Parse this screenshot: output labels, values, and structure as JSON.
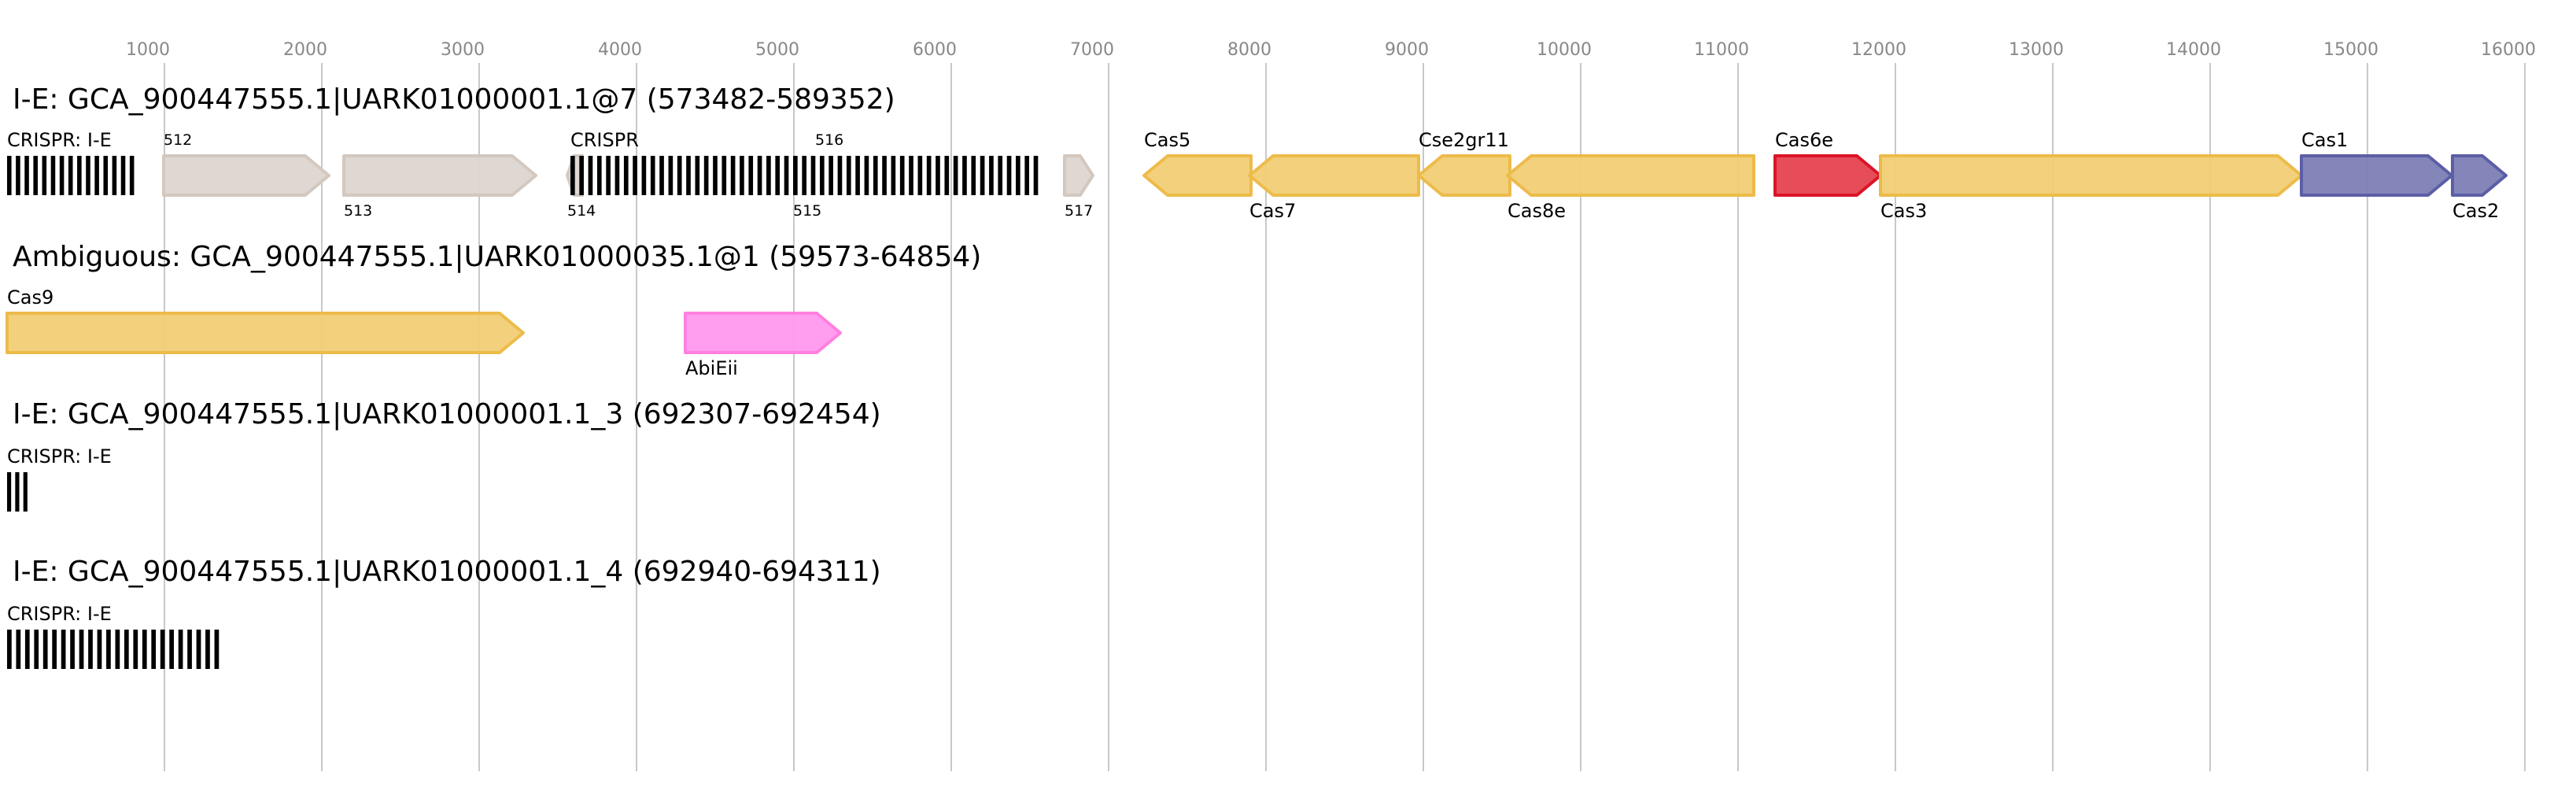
{
  "axis": {
    "ticks": [
      1000,
      2000,
      3000,
      4000,
      5000,
      6000,
      7000,
      8000,
      9000,
      10000,
      11000,
      12000,
      13000,
      14000,
      15000,
      16000
    ],
    "grid": true
  },
  "colors": {
    "other_fill": "#dcd5d0",
    "other_stroke": "#d3c8bf",
    "cas_fill": "#f1cd75",
    "cas_stroke": "#edbb4a",
    "cas6_fill": "#e5434f",
    "cas6_stroke": "#dc1428",
    "adapt_fill": "#7d7fb6",
    "adapt_stroke": "#5c5ea6",
    "abi_fill": "#ff99ee",
    "abi_stroke": "#ff80e0",
    "crispr": "#000000"
  },
  "loci": [
    {
      "title": "I-E: GCA_900447555.1|UARK01000001.1@7 (573482-589352)",
      "features": [
        {
          "label": "CRISPR: I-E",
          "type": "crispr",
          "start": 0,
          "end": 835,
          "repeats": 15,
          "label_pos": "above",
          "label_size": "normal"
        },
        {
          "label": "512",
          "type": "gene",
          "start": 995,
          "end": 2045,
          "strand": "+",
          "color": "other",
          "label_pos": "above",
          "label_size": "small"
        },
        {
          "label": "513",
          "type": "gene",
          "start": 2140,
          "end": 3360,
          "strand": "+",
          "color": "other",
          "label_pos": "below",
          "label_size": "small"
        },
        {
          "label": "514",
          "type": "gene",
          "start": 3560,
          "end": 3655,
          "strand": "-",
          "color": "other",
          "label_pos": "above",
          "label_size": "small"
        },
        {
          "label": "515",
          "type": "label",
          "start": 4995,
          "label_pos": "below",
          "label_size": "small"
        },
        {
          "label": "516",
          "type": "label",
          "start": 5135,
          "label_pos": "above",
          "label_size": "small"
        },
        {
          "label": "CRISPR",
          "type": "crispr",
          "start": 3580,
          "end": 6580,
          "repeats": 53,
          "label_pos": "above",
          "label_size": "normal"
        },
        {
          "label": "517",
          "type": "gene",
          "start": 6720,
          "end": 6900,
          "strand": "+",
          "color": "other",
          "label_pos": "below",
          "label_size": "small"
        },
        {
          "label": "Cas5",
          "type": "gene",
          "start": 7225,
          "end": 7905,
          "strand": "-",
          "color": "cas",
          "label_pos": "above"
        },
        {
          "label": "Cas7",
          "type": "gene",
          "start": 7895,
          "end": 8970,
          "strand": "-",
          "color": "cas",
          "label_pos": "below"
        },
        {
          "label": "Cse2gr11",
          "type": "gene",
          "start": 8970,
          "end": 9550,
          "strand": "-",
          "color": "cas",
          "label_pos": "above"
        },
        {
          "label": "Cas8e",
          "type": "gene",
          "start": 9535,
          "end": 11100,
          "strand": "-",
          "color": "cas",
          "label_pos": "below"
        },
        {
          "label": "Cas6e",
          "type": "gene",
          "start": 11235,
          "end": 11905,
          "strand": "+",
          "color": "cas6",
          "label_pos": "above"
        },
        {
          "label": "Cas3",
          "type": "gene",
          "start": 11905,
          "end": 14580,
          "strand": "+",
          "color": "cas",
          "label_pos": "below"
        },
        {
          "label": "Cas1",
          "type": "gene",
          "start": 14580,
          "end": 15535,
          "strand": "+",
          "color": "adapt",
          "label_pos": "above"
        },
        {
          "label": "Cas2",
          "type": "gene",
          "start": 15540,
          "end": 15880,
          "strand": "+",
          "color": "adapt",
          "label_pos": "below"
        }
      ]
    },
    {
      "title": "Ambiguous: GCA_900447555.1|UARK01000035.1@1 (59573-64854)",
      "features": [
        {
          "label": "Cas9",
          "type": "gene",
          "start": 0,
          "end": 3280,
          "strand": "+",
          "color": "cas",
          "label_pos": "above"
        },
        {
          "label": "AbiEii",
          "type": "gene",
          "start": 4310,
          "end": 5295,
          "strand": "+",
          "color": "abi",
          "label_pos": "below"
        }
      ]
    },
    {
      "title": "I-E: GCA_900447555.1|UARK01000001.1_3 (692307-692454)",
      "features": [
        {
          "label": "CRISPR: I-E",
          "type": "crispr",
          "start": 0,
          "end": 155,
          "repeats": 3,
          "label_pos": "above"
        }
      ]
    },
    {
      "title": "I-E: GCA_900447555.1|UARK01000001.1_4 (692940-694311)",
      "features": [
        {
          "label": "CRISPR: I-E",
          "type": "crispr",
          "start": 0,
          "end": 1375,
          "repeats": 24,
          "label_pos": "above"
        }
      ]
    }
  ]
}
